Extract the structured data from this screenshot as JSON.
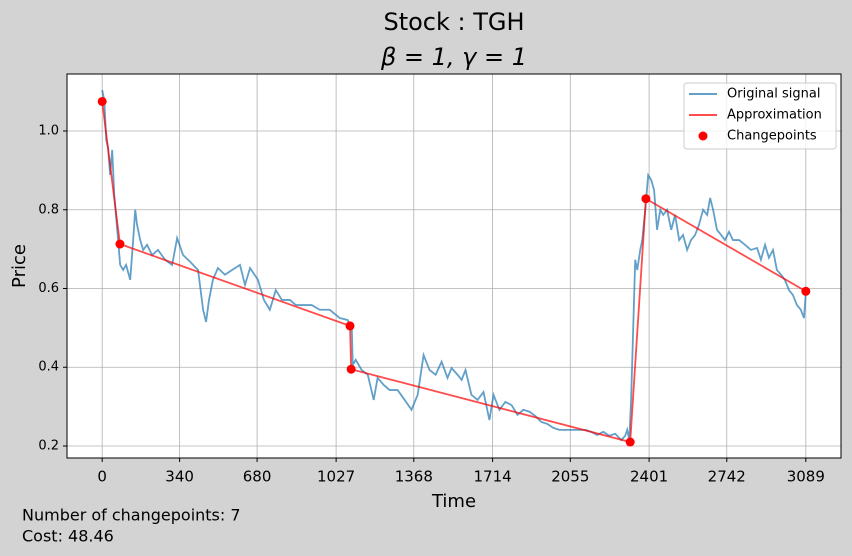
{
  "chart_data": {
    "type": "line",
    "title": "Stock : TGH",
    "subtitle": "β = 1, γ = 1",
    "x_label": "Time",
    "y_label": "Price",
    "annotations": [
      "Number of changepoints: 7",
      "Cost: 48.46"
    ],
    "xlim": [
      -154.45,
      3243.45
    ],
    "ylim": [
      0.1695,
      1.1448
    ],
    "xticks": [
      0,
      340,
      680,
      1027,
      1368,
      1714,
      2055,
      2401,
      2742,
      3089
    ],
    "yticks": [
      0.2,
      0.4,
      0.6,
      0.8,
      {
        "value": 1,
        "label": "1.0"
      }
    ],
    "grid": true,
    "legend": "upper right",
    "series": [
      {
        "name": "Original signal",
        "color": "#1f77b4",
        "kind": "line",
        "x": [
          0,
          9,
          18,
          26,
          35,
          44,
          53,
          66,
          79,
          92,
          105,
          123,
          136,
          145,
          153,
          167,
          180,
          197,
          219,
          245,
          276,
          307,
          329,
          355,
          386,
          421,
          443,
          456,
          469,
          486,
          508,
          539,
          570,
          605,
          627,
          649,
          684,
          710,
          736,
          762,
          789,
          824,
          850,
          890,
          920,
          955,
          999,
          1043,
          1078,
          1096,
          1100,
          1113,
          1139,
          1166,
          1192,
          1209,
          1236,
          1262,
          1297,
          1328,
          1358,
          1385,
          1411,
          1437,
          1464,
          1490,
          1516,
          1534,
          1560,
          1578,
          1595,
          1621,
          1648,
          1674,
          1700,
          1718,
          1744,
          1770,
          1797,
          1823,
          1849,
          1876,
          1902,
          1928,
          1954,
          1981,
          2007,
          2033,
          2060,
          2095,
          2121,
          2147,
          2173,
          2200,
          2226,
          2252,
          2279,
          2296,
          2305,
          2314,
          2322,
          2331,
          2340,
          2349,
          2362,
          2371,
          2384,
          2397,
          2410,
          2423,
          2436,
          2450,
          2463,
          2480,
          2498,
          2515,
          2533,
          2550,
          2568,
          2585,
          2603,
          2620,
          2638,
          2656,
          2669,
          2682,
          2699,
          2717,
          2734,
          2752,
          2769,
          2796,
          2822,
          2848,
          2875,
          2892,
          2910,
          2927,
          2945,
          2962,
          2980,
          2997,
          3015,
          3032,
          3050,
          3067,
          3081,
          3089
        ],
        "values": [
          1.104,
          1.079,
          0.977,
          0.957,
          0.888,
          0.952,
          0.838,
          0.749,
          0.66,
          0.647,
          0.66,
          0.622,
          0.723,
          0.8,
          0.762,
          0.723,
          0.698,
          0.711,
          0.685,
          0.698,
          0.673,
          0.66,
          0.728,
          0.685,
          0.668,
          0.647,
          0.546,
          0.515,
          0.571,
          0.622,
          0.652,
          0.635,
          0.647,
          0.66,
          0.609,
          0.652,
          0.622,
          0.571,
          0.546,
          0.596,
          0.571,
          0.571,
          0.558,
          0.558,
          0.558,
          0.546,
          0.546,
          0.525,
          0.52,
          0.495,
          0.406,
          0.419,
          0.393,
          0.381,
          0.317,
          0.373,
          0.355,
          0.342,
          0.342,
          0.317,
          0.292,
          0.33,
          0.431,
          0.393,
          0.381,
          0.414,
          0.373,
          0.398,
          0.381,
          0.368,
          0.393,
          0.33,
          0.317,
          0.337,
          0.266,
          0.33,
          0.292,
          0.312,
          0.304,
          0.279,
          0.292,
          0.287,
          0.276,
          0.261,
          0.256,
          0.246,
          0.241,
          0.241,
          0.241,
          0.241,
          0.241,
          0.236,
          0.228,
          0.236,
          0.226,
          0.231,
          0.215,
          0.226,
          0.241,
          0.215,
          0.317,
          0.495,
          0.673,
          0.647,
          0.698,
          0.723,
          0.8,
          0.888,
          0.876,
          0.85,
          0.749,
          0.8,
          0.787,
          0.8,
          0.749,
          0.787,
          0.723,
          0.736,
          0.698,
          0.723,
          0.736,
          0.762,
          0.8,
          0.787,
          0.83,
          0.8,
          0.749,
          0.736,
          0.723,
          0.744,
          0.723,
          0.723,
          0.711,
          0.698,
          0.703,
          0.673,
          0.711,
          0.678,
          0.698,
          0.647,
          0.635,
          0.622,
          0.596,
          0.584,
          0.558,
          0.546,
          0.525,
          0.589
        ]
      },
      {
        "name": "Approximation",
        "color": "#ff0000",
        "kind": "line",
        "x": [
          0,
          78,
          1088,
          1093,
          2318,
          2387,
          3089
        ],
        "values": [
          1.075,
          0.713,
          0.505,
          0.395,
          0.21,
          0.828,
          0.593
        ]
      },
      {
        "name": "Changepoints",
        "color": "#ff0000",
        "kind": "points",
        "x": [
          0,
          78,
          1088,
          1093,
          2318,
          2387,
          3089
        ],
        "values": [
          1.075,
          0.713,
          0.505,
          0.395,
          0.21,
          0.828,
          0.593
        ]
      }
    ]
  }
}
